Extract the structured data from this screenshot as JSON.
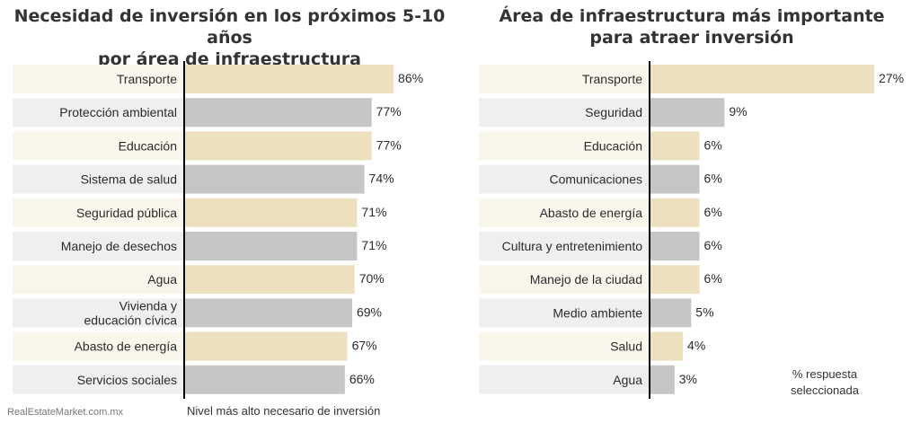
{
  "chart_data": [
    {
      "type": "bar",
      "title": "Necesidad de inversión en los próximos 5-10 años\npor área de infraestructura",
      "categories": [
        "Transporte",
        "Protección ambiental",
        "Educación",
        "Sistema de salud",
        "Seguridad pública",
        "Manejo de desechos",
        "Agua",
        "Vivienda y\neducación cívica",
        "Abasto de energía",
        "Servicios sociales"
      ],
      "values": [
        86,
        77,
        77,
        74,
        71,
        71,
        70,
        69,
        67,
        66
      ],
      "value_labels": [
        "86%",
        "77%",
        "77%",
        "74%",
        "71%",
        "71%",
        "70%",
        "69%",
        "67%",
        "66%"
      ],
      "xlabel": "Nivel más alto necesario de inversión",
      "orientation": "horizontal",
      "xlim": [
        0,
        100
      ]
    },
    {
      "type": "bar",
      "title": "Área de infraestructura más importante\npara atraer inversión",
      "categories": [
        "Transporte",
        "Seguridad",
        "Educación",
        "Comunicaciones",
        "Abasto de energía",
        "Cultura y entretenimiento",
        "Manejo de la ciudad",
        "Medio ambiente",
        "Salud",
        "Agua"
      ],
      "values": [
        27,
        9,
        6,
        6,
        6,
        6,
        6,
        5,
        4,
        3
      ],
      "value_labels": [
        "27%",
        "9%",
        "6%",
        "6%",
        "6%",
        "6%",
        "6%",
        "5%",
        "4%",
        "3%"
      ],
      "xlabel": "% respuesta\nseleccionada",
      "orientation": "horizontal",
      "xlim": [
        0,
        27
      ]
    }
  ],
  "colors": {
    "odd_row_bg": "#f9f6ec",
    "even_row_bg": "#efefef",
    "odd_bar": "#ece0be",
    "even_bar": "#c6c6c8",
    "axis": "#000000"
  },
  "watermark": "RealEstateMarket.com.mx"
}
